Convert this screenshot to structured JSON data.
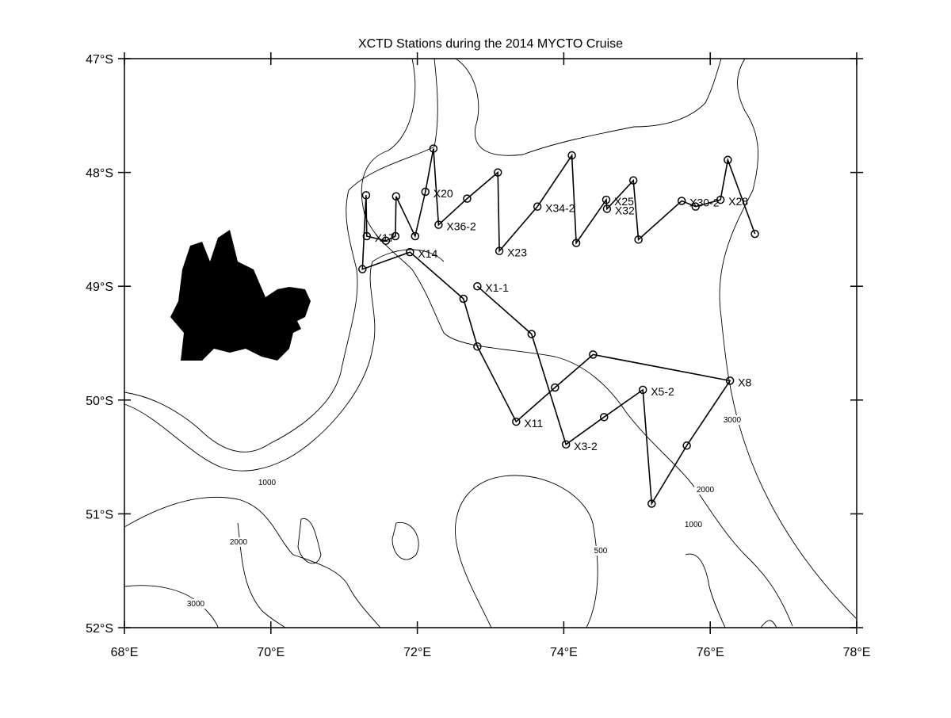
{
  "chart_data": {
    "type": "station-map",
    "title": "XCTD Stations during the 2014 MYCTO Cruise",
    "xlim": [
      68,
      78
    ],
    "ylim": [
      -52,
      -47
    ],
    "xticks": [
      {
        "value": 68,
        "label": "68°E"
      },
      {
        "value": 70,
        "label": "70°E"
      },
      {
        "value": 72,
        "label": "72°E"
      },
      {
        "value": 74,
        "label": "74°E"
      },
      {
        "value": 76,
        "label": "76°E"
      },
      {
        "value": 78,
        "label": "78°E"
      }
    ],
    "yticks": [
      {
        "value": -47,
        "label": "47°S"
      },
      {
        "value": -48,
        "label": "48°S"
      },
      {
        "value": -49,
        "label": "49°S"
      },
      {
        "value": -50,
        "label": "50°S"
      },
      {
        "value": -51,
        "label": "51°S"
      },
      {
        "value": -52,
        "label": "52°S"
      }
    ],
    "color": "#000000",
    "x": [
      72.82,
      73.56,
      74.03,
      74.55,
      75.08,
      75.2,
      75.68,
      76.27,
      74.4,
      73.88,
      73.35,
      72.82,
      72.63,
      71.9,
      71.25,
      71.3,
      71.31,
      71.57,
      71.7,
      71.71,
      71.97,
      72.11,
      72.22,
      72.29,
      72.68,
      73.1,
      73.12,
      73.64,
      74.11,
      74.17,
      74.58,
      74.59,
      74.95,
      75.02,
      75.61,
      75.8,
      76.14,
      76.24,
      76.61
    ],
    "values": [
      -49.0,
      -49.42,
      -50.39,
      -50.15,
      -49.91,
      -50.91,
      -50.4,
      -49.83,
      -49.6,
      -49.89,
      -50.19,
      -49.53,
      -49.11,
      -48.7,
      -48.85,
      -48.2,
      -48.56,
      -48.6,
      -48.56,
      -48.21,
      -48.56,
      -48.17,
      -47.79,
      -48.46,
      -48.23,
      -48.0,
      -48.69,
      -48.3,
      -47.85,
      -48.62,
      -48.24,
      -48.32,
      -48.07,
      -48.59,
      -48.25,
      -48.3,
      -48.24,
      -47.89,
      -48.54
    ],
    "labels": [
      "X1-1",
      null,
      "X3-2",
      null,
      "X5-2",
      null,
      null,
      "X8",
      null,
      null,
      "X11",
      null,
      null,
      "X14",
      null,
      null,
      "X17",
      null,
      null,
      null,
      null,
      "X20",
      null,
      "X36-2",
      null,
      null,
      "X23",
      "X34-2",
      null,
      null,
      "X25",
      "X32",
      null,
      null,
      "X30-2",
      null,
      "X28",
      null,
      null
    ],
    "contour_labels": [
      "1000",
      "2000",
      "3000",
      "500",
      "1000",
      "2000",
      "3000"
    ]
  }
}
